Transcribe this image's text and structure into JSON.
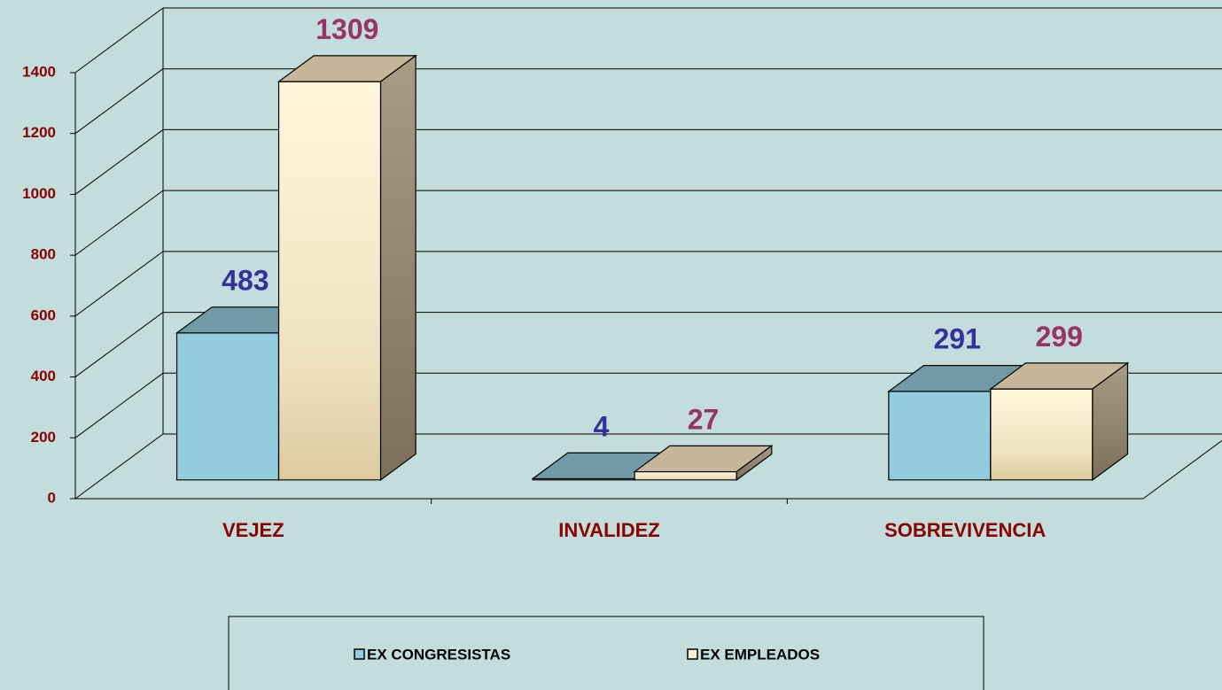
{
  "chart_data": {
    "type": "bar3d",
    "categories": [
      "VEJEZ",
      "INVALIDEZ",
      "SOBREVIVENCIA"
    ],
    "series": [
      {
        "name": "EX CONGRESISTAS",
        "color": "#93cddd",
        "label_color": "#333399",
        "values": [
          483,
          4,
          291
        ]
      },
      {
        "name": "EX EMPLEADOS",
        "color": "#fff2d4",
        "label_color": "#993366",
        "values": [
          1309,
          27,
          299
        ]
      }
    ],
    "ylim": [
      0,
      1400
    ],
    "yticks": [
      0,
      200,
      400,
      600,
      800,
      1000,
      1200,
      1400
    ],
    "grid": true
  }
}
